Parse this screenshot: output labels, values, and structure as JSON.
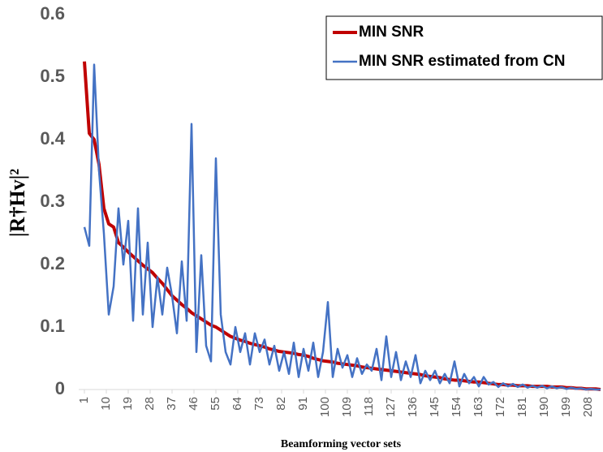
{
  "chart_data": {
    "type": "line",
    "x_label": "Beamforming vector sets",
    "y_label": "|R†Hv|²",
    "xlim": [
      0,
      213
    ],
    "ylim": [
      0,
      0.6
    ],
    "xticks": [
      1,
      10,
      19,
      28,
      37,
      46,
      55,
      64,
      73,
      82,
      91,
      100,
      109,
      118,
      127,
      136,
      145,
      154,
      163,
      172,
      181,
      190,
      199,
      208
    ],
    "yticks": [
      0,
      0.1,
      0.2,
      0.3,
      0.4,
      0.5,
      0.6
    ],
    "legend": "upper right",
    "x": [
      1,
      3,
      5,
      7,
      9,
      11,
      13,
      15,
      17,
      19,
      21,
      23,
      25,
      27,
      29,
      31,
      33,
      35,
      37,
      39,
      41,
      43,
      45,
      47,
      49,
      51,
      53,
      55,
      57,
      59,
      61,
      63,
      65,
      67,
      69,
      71,
      73,
      75,
      77,
      79,
      81,
      83,
      85,
      87,
      89,
      91,
      93,
      95,
      97,
      99,
      101,
      103,
      105,
      107,
      109,
      111,
      113,
      115,
      117,
      119,
      121,
      123,
      125,
      127,
      129,
      131,
      133,
      135,
      137,
      139,
      141,
      143,
      145,
      147,
      149,
      151,
      153,
      155,
      157,
      159,
      161,
      163,
      165,
      167,
      169,
      171,
      173,
      175,
      177,
      179,
      181,
      183,
      185,
      187,
      189,
      191,
      193,
      195,
      197,
      199,
      201,
      203,
      205,
      207,
      209,
      211,
      213
    ],
    "series": [
      {
        "name": "MIN SNR",
        "color": "#c00000",
        "width": 4,
        "values": [
          0.525,
          0.41,
          0.4,
          0.36,
          0.29,
          0.265,
          0.26,
          0.235,
          0.228,
          0.22,
          0.213,
          0.206,
          0.199,
          0.193,
          0.187,
          0.178,
          0.17,
          0.16,
          0.15,
          0.143,
          0.136,
          0.13,
          0.123,
          0.118,
          0.113,
          0.108,
          0.103,
          0.1,
          0.095,
          0.09,
          0.085,
          0.082,
          0.079,
          0.077,
          0.074,
          0.072,
          0.07,
          0.068,
          0.065,
          0.063,
          0.061,
          0.06,
          0.059,
          0.058,
          0.056,
          0.055,
          0.053,
          0.05,
          0.048,
          0.046,
          0.045,
          0.044,
          0.042,
          0.041,
          0.04,
          0.039,
          0.038,
          0.036,
          0.035,
          0.034,
          0.033,
          0.032,
          0.031,
          0.03,
          0.029,
          0.028,
          0.027,
          0.026,
          0.025,
          0.024,
          0.022,
          0.021,
          0.02,
          0.019,
          0.017,
          0.016,
          0.015,
          0.015,
          0.014,
          0.013,
          0.012,
          0.012,
          0.011,
          0.01,
          0.009,
          0.008,
          0.008,
          0.007,
          0.007,
          0.006,
          0.006,
          0.006,
          0.005,
          0.005,
          0.005,
          0.005,
          0.004,
          0.004,
          0.004,
          0.003,
          0.003,
          0.002,
          0.002,
          0.001,
          0.001,
          0.001,
          0.0
        ]
      },
      {
        "name": "MIN SNR estimated from CN",
        "color": "#4472c4",
        "width": 2.5,
        "values": [
          0.26,
          0.23,
          0.52,
          0.35,
          0.25,
          0.12,
          0.165,
          0.29,
          0.2,
          0.27,
          0.11,
          0.29,
          0.12,
          0.235,
          0.1,
          0.18,
          0.12,
          0.195,
          0.15,
          0.09,
          0.205,
          0.11,
          0.425,
          0.06,
          0.215,
          0.07,
          0.045,
          0.37,
          0.12,
          0.06,
          0.04,
          0.1,
          0.06,
          0.09,
          0.04,
          0.09,
          0.06,
          0.08,
          0.04,
          0.07,
          0.03,
          0.06,
          0.025,
          0.075,
          0.02,
          0.065,
          0.03,
          0.075,
          0.02,
          0.06,
          0.14,
          0.02,
          0.065,
          0.035,
          0.055,
          0.02,
          0.05,
          0.025,
          0.04,
          0.03,
          0.065,
          0.015,
          0.085,
          0.02,
          0.06,
          0.015,
          0.045,
          0.02,
          0.055,
          0.01,
          0.03,
          0.015,
          0.03,
          0.01,
          0.025,
          0.01,
          0.045,
          0.005,
          0.025,
          0.01,
          0.02,
          0.005,
          0.02,
          0.008,
          0.012,
          0.004,
          0.01,
          0.005,
          0.009,
          0.004,
          0.008,
          0.003,
          0.006,
          0.003,
          0.006,
          0.002,
          0.005,
          0.002,
          0.004,
          0.001,
          0.003,
          0.001,
          0.002,
          0.0,
          0.001,
          0.0,
          0.0
        ]
      }
    ]
  }
}
